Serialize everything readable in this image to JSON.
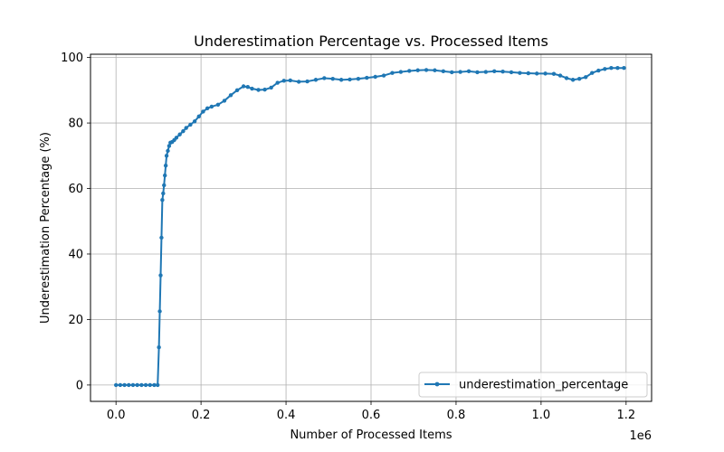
{
  "chart_data": {
    "type": "line",
    "title": "Underestimation Percentage vs. Processed Items",
    "xlabel": "Number of Processed Items",
    "ylabel": "Underestimation Percentage (%)",
    "x_offset_label": "1e6",
    "xlim": [
      -0.06,
      1.26
    ],
    "ylim": [
      -5,
      101
    ],
    "x_scale_multiplier": 1000000,
    "x_ticks": [
      0.0,
      0.2,
      0.4,
      0.6,
      0.8,
      1.0,
      1.2
    ],
    "x_tick_labels": [
      "0.0",
      "0.2",
      "0.4",
      "0.6",
      "0.8",
      "1.0",
      "1.2"
    ],
    "y_ticks": [
      0,
      20,
      40,
      60,
      80,
      100
    ],
    "y_tick_labels": [
      "0",
      "20",
      "40",
      "60",
      "80",
      "100"
    ],
    "grid": true,
    "legend_position": "lower-right",
    "series": [
      {
        "name": "underestimation_percentage",
        "color": "#1f77b4",
        "marker": "circle",
        "points": [
          [
            0.0,
            0
          ],
          [
            0.01,
            0
          ],
          [
            0.02,
            0
          ],
          [
            0.03,
            0
          ],
          [
            0.04,
            0
          ],
          [
            0.05,
            0
          ],
          [
            0.06,
            0
          ],
          [
            0.07,
            0
          ],
          [
            0.08,
            0
          ],
          [
            0.09,
            0
          ],
          [
            0.098,
            0
          ],
          [
            0.101,
            11.5
          ],
          [
            0.103,
            22.5
          ],
          [
            0.105,
            33.5
          ],
          [
            0.107,
            45.0
          ],
          [
            0.109,
            56.5
          ],
          [
            0.111,
            58.5
          ],
          [
            0.113,
            61.0
          ],
          [
            0.115,
            64.0
          ],
          [
            0.117,
            67.0
          ],
          [
            0.119,
            70.0
          ],
          [
            0.122,
            71.5
          ],
          [
            0.125,
            73.0
          ],
          [
            0.128,
            74.0
          ],
          [
            0.132,
            74.2
          ],
          [
            0.137,
            74.8
          ],
          [
            0.142,
            75.5
          ],
          [
            0.15,
            76.5
          ],
          [
            0.158,
            77.5
          ],
          [
            0.165,
            78.5
          ],
          [
            0.175,
            79.5
          ],
          [
            0.185,
            80.5
          ],
          [
            0.195,
            82.0
          ],
          [
            0.205,
            83.5
          ],
          [
            0.215,
            84.5
          ],
          [
            0.225,
            85.0
          ],
          [
            0.24,
            85.6
          ],
          [
            0.255,
            86.8
          ],
          [
            0.27,
            88.5
          ],
          [
            0.285,
            90.0
          ],
          [
            0.3,
            91.2
          ],
          [
            0.31,
            91.0
          ],
          [
            0.32,
            90.5
          ],
          [
            0.335,
            90.1
          ],
          [
            0.35,
            90.2
          ],
          [
            0.365,
            90.8
          ],
          [
            0.38,
            92.3
          ],
          [
            0.395,
            92.9
          ],
          [
            0.41,
            93.0
          ],
          [
            0.43,
            92.6
          ],
          [
            0.45,
            92.7
          ],
          [
            0.47,
            93.2
          ],
          [
            0.49,
            93.7
          ],
          [
            0.51,
            93.5
          ],
          [
            0.53,
            93.2
          ],
          [
            0.55,
            93.3
          ],
          [
            0.57,
            93.5
          ],
          [
            0.59,
            93.8
          ],
          [
            0.61,
            94.1
          ],
          [
            0.63,
            94.5
          ],
          [
            0.65,
            95.3
          ],
          [
            0.67,
            95.6
          ],
          [
            0.69,
            95.9
          ],
          [
            0.71,
            96.1
          ],
          [
            0.73,
            96.2
          ],
          [
            0.75,
            96.1
          ],
          [
            0.77,
            95.8
          ],
          [
            0.79,
            95.5
          ],
          [
            0.81,
            95.6
          ],
          [
            0.83,
            95.8
          ],
          [
            0.85,
            95.5
          ],
          [
            0.87,
            95.6
          ],
          [
            0.89,
            95.8
          ],
          [
            0.91,
            95.7
          ],
          [
            0.93,
            95.5
          ],
          [
            0.95,
            95.3
          ],
          [
            0.97,
            95.2
          ],
          [
            0.99,
            95.1
          ],
          [
            1.01,
            95.1
          ],
          [
            1.03,
            95.0
          ],
          [
            1.045,
            94.5
          ],
          [
            1.06,
            93.7
          ],
          [
            1.075,
            93.2
          ],
          [
            1.09,
            93.5
          ],
          [
            1.105,
            94.0
          ],
          [
            1.12,
            95.3
          ],
          [
            1.135,
            96.0
          ],
          [
            1.15,
            96.5
          ],
          [
            1.165,
            96.8
          ],
          [
            1.18,
            96.8
          ],
          [
            1.195,
            96.8
          ]
        ]
      }
    ]
  }
}
